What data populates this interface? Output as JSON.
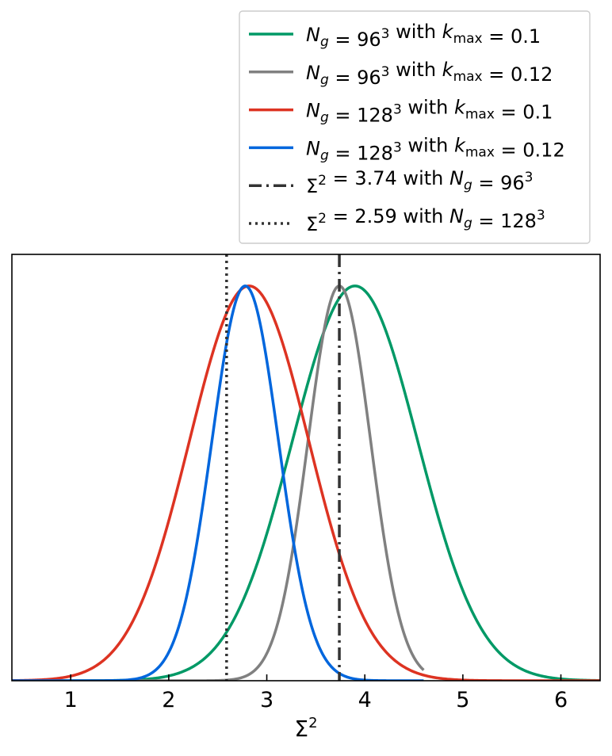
{
  "chart_data": {
    "type": "line",
    "xlabel": "Σ²",
    "ylabel": "",
    "xlim": [
      0.4,
      6.4
    ],
    "ylim": [
      0,
      1.08
    ],
    "xticks": [
      1,
      2,
      3,
      4,
      5,
      6
    ],
    "yticks": [],
    "grid": false,
    "legend_position": "above-right",
    "series": [
      {
        "name": "N_g = 96³ with k_max = 0.1",
        "kind": "gaussian",
        "mean": 3.9,
        "sigma": 0.64,
        "peak": 1.0,
        "color": "#009966",
        "dash": "solid"
      },
      {
        "name": "N_g = 96³ with k_max = 0.12",
        "kind": "gaussian",
        "mean": 3.74,
        "sigma": 0.32,
        "peak": 1.0,
        "color": "#808080",
        "dash": "solid",
        "x_end": 4.6
      },
      {
        "name": "N_g = 128³ with k_max = 0.1",
        "kind": "gaussian",
        "mean": 2.82,
        "sigma": 0.61,
        "peak": 1.0,
        "color": "#dd3322",
        "dash": "solid"
      },
      {
        "name": "N_g = 128³ with k_max = 0.12",
        "kind": "gaussian",
        "mean": 2.78,
        "sigma": 0.34,
        "peak": 1.0,
        "color": "#0066dd",
        "dash": "solid",
        "x_end": 4.6
      },
      {
        "name": "Σ² = 3.74 with N_g = 96³",
        "kind": "vline",
        "x": 3.74,
        "color": "#333333",
        "dash": "dashdot"
      },
      {
        "name": "Σ² = 2.59 with N_g = 128³",
        "kind": "vline",
        "x": 2.59,
        "color": "#333333",
        "dash": "dotted"
      }
    ],
    "legend_entries": [
      {
        "lhs": "N",
        "lhs_sub": "g",
        "mid": " = 96",
        "mid_sup": "3",
        "with": " with ",
        "rhs": "k",
        "rhs_sub": "max",
        "end": " = 0.1"
      },
      {
        "lhs": "N",
        "lhs_sub": "g",
        "mid": " = 96",
        "mid_sup": "3",
        "with": " with ",
        "rhs": "k",
        "rhs_sub": "max",
        "end": " = 0.12"
      },
      {
        "lhs": "N",
        "lhs_sub": "g",
        "mid": " = 128",
        "mid_sup": "3",
        "with": " with ",
        "rhs": "k",
        "rhs_sub": "max",
        "end": " = 0.1"
      },
      {
        "lhs": "N",
        "lhs_sub": "g",
        "mid": " = 128",
        "mid_sup": "3",
        "with": " with ",
        "rhs": "k",
        "rhs_sub": "max",
        "end": " = 0.12"
      },
      {
        "lhs": "Σ",
        "lhs_sup": "2",
        "mid": " = 3.74 with ",
        "rhs": "N",
        "rhs_sub": "g",
        "end": " = 96",
        "end_sup": "3"
      },
      {
        "lhs": "Σ",
        "lhs_sup": "2",
        "mid": " = 2.59 with ",
        "rhs": "N",
        "rhs_sub": "g",
        "end": " = 128",
        "end_sup": "3"
      }
    ]
  }
}
